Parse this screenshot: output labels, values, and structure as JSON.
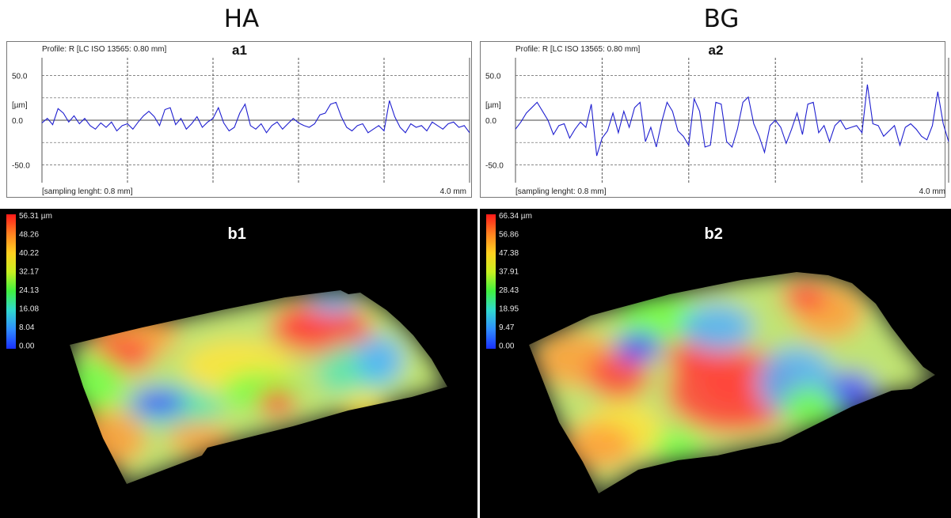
{
  "titles": {
    "left": "HA",
    "right": "BG"
  },
  "chart_data": [
    {
      "type": "line",
      "panel_label": "a1",
      "title": "Profile: R [LC ISO 13565: 0.80 mm]",
      "ylabel": "[µm]",
      "xlabel": "[sampling lenght: 0.8 mm]",
      "x_end_label": "4.0 mm",
      "yticks": [
        "50.0",
        "0.0",
        "-50.0"
      ],
      "ylim": [
        -70,
        70
      ],
      "xlim": [
        0,
        4.0
      ],
      "vlines": [
        0.8,
        1.6,
        2.4,
        3.2
      ],
      "hlines": [
        50,
        25,
        0,
        -25,
        -50
      ],
      "color": "#2020d0",
      "series": [
        {
          "x": [
            0.0,
            0.05,
            0.1,
            0.15,
            0.2,
            0.25,
            0.3,
            0.35,
            0.4,
            0.45,
            0.5,
            0.55,
            0.6,
            0.65,
            0.7,
            0.75,
            0.8,
            0.85,
            0.9,
            0.95,
            1.0,
            1.05,
            1.1,
            1.15,
            1.2,
            1.25,
            1.3,
            1.35,
            1.4,
            1.45,
            1.5,
            1.55,
            1.6,
            1.65,
            1.7,
            1.75,
            1.8,
            1.85,
            1.9,
            1.95,
            2.0,
            2.05,
            2.1,
            2.15,
            2.2,
            2.25,
            2.3,
            2.35,
            2.4,
            2.45,
            2.5,
            2.55,
            2.6,
            2.65,
            2.7,
            2.75,
            2.8,
            2.85,
            2.9,
            2.95,
            3.0,
            3.05,
            3.1,
            3.15,
            3.2,
            3.25,
            3.3,
            3.35,
            3.4,
            3.45,
            3.5,
            3.55,
            3.6,
            3.65,
            3.7,
            3.75,
            3.8,
            3.85,
            3.9,
            3.95,
            4.0
          ],
          "y": [
            -3,
            2,
            -5,
            13,
            8,
            -2,
            5,
            -4,
            2,
            -6,
            -10,
            -3,
            -8,
            -2,
            -12,
            -6,
            -4,
            -10,
            -2,
            5,
            10,
            4,
            -6,
            12,
            14,
            -5,
            2,
            -10,
            -4,
            4,
            -8,
            -2,
            2,
            14,
            -3,
            -12,
            -8,
            8,
            18,
            -6,
            -10,
            -4,
            -14,
            -6,
            -2,
            -10,
            -4,
            2,
            -3,
            -6,
            -8,
            -4,
            6,
            8,
            18,
            20,
            4,
            -8,
            -12,
            -6,
            -4,
            -14,
            -10,
            -6,
            -12,
            22,
            4,
            -8,
            -14,
            -4,
            -8,
            -6,
            -12,
            -2,
            -6,
            -10,
            -4,
            -2,
            -8,
            -6,
            -14
          ]
        }
      ]
    },
    {
      "type": "line",
      "panel_label": "a2",
      "title": "Profile: R [LC ISO 13565: 0.80 mm]",
      "ylabel": "[µm]",
      "xlabel": "[sampling lenght: 0.8 mm]",
      "x_end_label": "4.0 mm",
      "yticks": [
        "50.0",
        "0.0",
        "-50.0"
      ],
      "ylim": [
        -70,
        70
      ],
      "xlim": [
        0,
        4.0
      ],
      "vlines": [
        0.8,
        1.6,
        2.4,
        3.2
      ],
      "hlines": [
        50,
        25,
        0,
        -25,
        -50
      ],
      "color": "#2020d0",
      "series": [
        {
          "x": [
            0.0,
            0.05,
            0.1,
            0.15,
            0.2,
            0.25,
            0.3,
            0.35,
            0.4,
            0.45,
            0.5,
            0.55,
            0.6,
            0.65,
            0.7,
            0.75,
            0.8,
            0.85,
            0.9,
            0.95,
            1.0,
            1.05,
            1.1,
            1.15,
            1.2,
            1.25,
            1.3,
            1.35,
            1.4,
            1.45,
            1.5,
            1.55,
            1.6,
            1.65,
            1.7,
            1.75,
            1.8,
            1.85,
            1.9,
            1.95,
            2.0,
            2.05,
            2.1,
            2.15,
            2.2,
            2.25,
            2.3,
            2.35,
            2.4,
            2.45,
            2.5,
            2.55,
            2.6,
            2.65,
            2.7,
            2.75,
            2.8,
            2.85,
            2.9,
            2.95,
            3.0,
            3.05,
            3.1,
            3.15,
            3.2,
            3.25,
            3.3,
            3.35,
            3.4,
            3.45,
            3.5,
            3.55,
            3.6,
            3.65,
            3.7,
            3.75,
            3.8,
            3.85,
            3.9,
            3.95,
            4.0
          ],
          "y": [
            -10,
            -2,
            8,
            14,
            20,
            10,
            0,
            -16,
            -6,
            -4,
            -20,
            -10,
            -2,
            -8,
            18,
            -40,
            -20,
            -12,
            8,
            -14,
            10,
            -8,
            14,
            20,
            -24,
            -8,
            -30,
            -2,
            20,
            10,
            -12,
            -18,
            -28,
            24,
            10,
            -30,
            -28,
            20,
            18,
            -24,
            -30,
            -10,
            20,
            26,
            -4,
            -18,
            -36,
            -6,
            0,
            -8,
            -26,
            -10,
            8,
            -16,
            18,
            20,
            -14,
            -6,
            -24,
            -6,
            0,
            -10,
            -8,
            -6,
            -14,
            40,
            -4,
            -6,
            -18,
            -12,
            -6,
            -28,
            -8,
            -4,
            -10,
            -18,
            -22,
            -6,
            32,
            -4,
            -24
          ]
        }
      ]
    },
    {
      "type": "heatmap",
      "panel_label": "b1",
      "unit": "µm",
      "legend_labels": [
        "56.31 µm",
        "48.26",
        "40.22",
        "32.17",
        "24.13",
        "16.08",
        "8.04",
        "0.00"
      ],
      "range": [
        0.0,
        56.31
      ]
    },
    {
      "type": "heatmap",
      "panel_label": "b2",
      "unit": "µm",
      "legend_labels": [
        "66.34 µm",
        "56.86",
        "47.38",
        "37.91",
        "28.43",
        "18.95",
        "9.47",
        "0.00"
      ],
      "range": [
        0.0,
        66.34
      ]
    }
  ]
}
